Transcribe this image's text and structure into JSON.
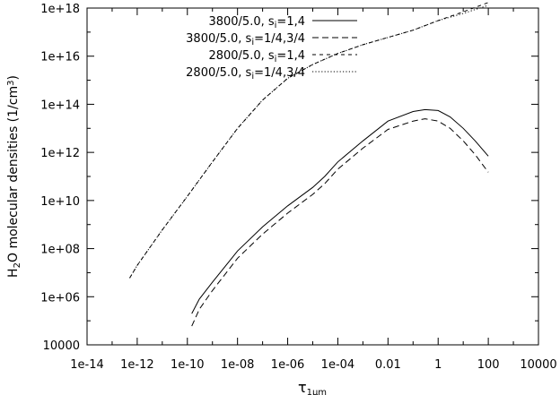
{
  "chart_data": {
    "type": "line",
    "xscale": "log",
    "yscale": "log",
    "xlim": [
      1e-14,
      10000
    ],
    "ylim": [
      10000,
      1e+18
    ],
    "xticks": [
      {
        "value": 1e-14,
        "label": "1e-14"
      },
      {
        "value": 1e-12,
        "label": "1e-12"
      },
      {
        "value": 1e-10,
        "label": "1e-10"
      },
      {
        "value": 1e-08,
        "label": "1e-08"
      },
      {
        "value": 1e-06,
        "label": "1e-06"
      },
      {
        "value": 0.0001,
        "label": "1e-04"
      },
      {
        "value": 0.01,
        "label": "0.01"
      },
      {
        "value": 1,
        "label": "1"
      },
      {
        "value": 100,
        "label": "100"
      },
      {
        "value": 10000,
        "label": "10000"
      }
    ],
    "yticks": [
      {
        "value": 10000,
        "label": "10000"
      },
      {
        "value": 1000000.0,
        "label": "1e+06"
      },
      {
        "value": 100000000.0,
        "label": "1e+08"
      },
      {
        "value": 10000000000.0,
        "label": "1e+10"
      },
      {
        "value": 1000000000000.0,
        "label": "1e+12"
      },
      {
        "value": 100000000000000.0,
        "label": "1e+14"
      },
      {
        "value": 1e+16,
        "label": "1e+16"
      },
      {
        "value": 1e+18,
        "label": "1e+18"
      }
    ],
    "xlabel": {
      "main": "τ",
      "sub": "1μm"
    },
    "ylabel": {
      "p1": "H",
      "sub": "2",
      "p2": "O molecular densities (1/cm",
      "sup": "3",
      "p3": ")"
    },
    "legend_position": "top-right",
    "grid": false,
    "series": [
      {
        "name": {
          "main": "3800/5.0, s",
          "sub": "i",
          "rest": "=1,4"
        },
        "dash": "solid",
        "x": [
          1.5e-10,
          3e-10,
          1e-09,
          1e-08,
          1e-07,
          1e-06,
          1e-05,
          3e-05,
          0.0001,
          0.001,
          0.01,
          0.1,
          0.3,
          1,
          3,
          10,
          30,
          100
        ],
        "y": [
          200000.0,
          800000.0,
          4000000.0,
          80000000.0,
          800000000.0,
          6000000000.0,
          35000000000.0,
          100000000000.0,
          400000000000.0,
          3000000000000.0,
          20000000000000.0,
          50000000000000.0,
          60000000000000.0,
          55000000000000.0,
          30000000000000.0,
          10000000000000.0,
          3000000000000.0,
          700000000000.0
        ]
      },
      {
        "name": {
          "main": "3800/5.0, s",
          "sub": "i",
          "rest": "=1/4,3/4"
        },
        "dash": "long",
        "x": [
          1.5e-10,
          3e-10,
          1e-09,
          1e-08,
          1e-07,
          1e-06,
          1e-05,
          3e-05,
          0.0001,
          0.001,
          0.01,
          0.1,
          0.3,
          1,
          3,
          10,
          30,
          100
        ],
        "y": [
          60000.0,
          300000.0,
          1800000.0,
          40000000.0,
          400000000.0,
          3000000000.0,
          18000000000.0,
          50000000000.0,
          200000000000.0,
          1500000000000.0,
          9000000000000.0,
          20000000000000.0,
          25000000000000.0,
          20000000000000.0,
          10000000000000.0,
          3000000000000.0,
          800000000000.0,
          150000000000.0
        ]
      },
      {
        "name": {
          "main": "2800/5.0, s",
          "sub": "i",
          "rest": "=1,4"
        },
        "dash": "short",
        "x": [
          5e-13,
          1e-12,
          1e-11,
          1e-10,
          1e-09,
          1e-08,
          1e-07,
          1e-06,
          1e-05,
          0.0001,
          0.001,
          0.01,
          0.1,
          1,
          10,
          100
        ],
        "y": [
          6000000.0,
          20000000.0,
          600000000.0,
          15000000000.0,
          400000000000.0,
          10000000000000.0,
          150000000000000.0,
          1200000000000000.0,
          4500000000000000.0,
          1.3e+16,
          3e+16,
          6e+16,
          1.2e+17,
          3e+17,
          7e+17,
          1.7e+18
        ]
      },
      {
        "name": {
          "main": "2800/5.0, s",
          "sub": "i",
          "rest": "=1/4,3/4"
        },
        "dash": "dotted",
        "x": [
          5e-13,
          1e-12,
          1e-11,
          1e-10,
          1e-09,
          1e-08,
          1e-07,
          1e-06,
          1e-05,
          0.0001,
          0.001,
          0.01,
          0.1,
          1,
          10,
          100
        ],
        "y": [
          6000000.0,
          20000000.0,
          600000000.0,
          15000000000.0,
          400000000000.0,
          10000000000000.0,
          150000000000000.0,
          1200000000000000.0,
          4500000000000000.0,
          1.3e+16,
          3e+16,
          6e+16,
          1.2e+17,
          3e+17,
          6e+17,
          1.3e+18
        ]
      }
    ]
  }
}
